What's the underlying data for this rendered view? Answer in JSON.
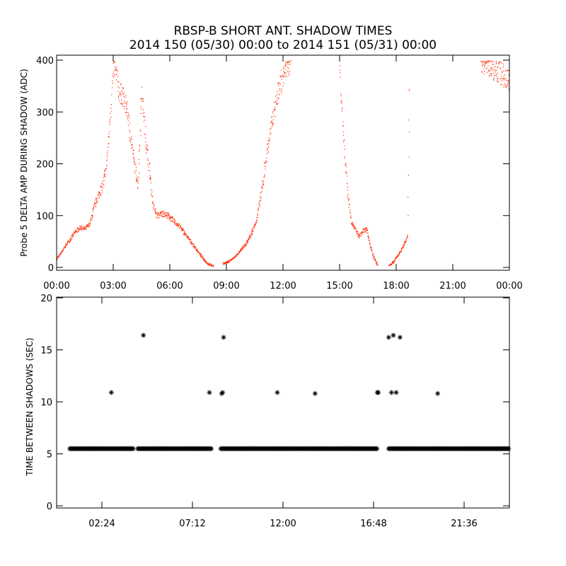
{
  "title": "RBSP-B SHORT ANT. SHADOW TIMES",
  "subtitle": "2014 150 (05/30) 00:00 to 2014 151 (05/31) 00:00",
  "colors": {
    "top_series": "#ff2a00",
    "bottom_series": "#000000",
    "axes": "#000000"
  },
  "chart_data": [
    {
      "type": "scatter",
      "ylabel": "Probe 5 DELTA AMP DURING SHADOW (ADC)",
      "xlabel": "",
      "xlim_hours": [
        0,
        24
      ],
      "ylim": [
        0,
        400
      ],
      "x_tick_labels": [
        "00:00",
        "03:00",
        "06:00",
        "09:00",
        "12:00",
        "15:00",
        "18:00",
        "21:00",
        "00:00"
      ],
      "x_tick_hours": [
        0,
        3,
        6,
        9,
        12,
        15,
        18,
        21,
        24
      ],
      "y_ticks": [
        0,
        100,
        200,
        300,
        400
      ],
      "series": [
        {
          "x_hours": [
            0.0,
            0.25,
            0.5,
            0.75,
            1.0,
            1.25,
            1.5,
            1.75,
            2.0,
            2.2,
            2.4,
            2.6,
            2.75,
            2.9,
            3.0,
            3.15,
            3.3,
            3.5,
            3.75,
            3.95,
            4.1,
            4.3,
            4.5,
            4.7,
            4.9,
            5.1,
            5.3,
            5.6,
            5.9,
            6.2,
            6.5,
            6.8,
            7.1,
            7.4,
            7.7,
            8.0,
            8.3
          ],
          "y": [
            18,
            30,
            45,
            58,
            70,
            78,
            75,
            85,
            120,
            140,
            155,
            190,
            250,
            330,
            390,
            370,
            340,
            330,
            300,
            240,
            200,
            160,
            340,
            250,
            190,
            120,
            100,
            105,
            100,
            90,
            80,
            65,
            50,
            35,
            20,
            8,
            3
          ]
        },
        {
          "x_hours": [
            8.8,
            9.1,
            9.4,
            9.7,
            10.0,
            10.3,
            10.6,
            10.9,
            11.2,
            11.5,
            11.8,
            12.1,
            12.4
          ],
          "y": [
            8,
            12,
            20,
            32,
            45,
            65,
            95,
            160,
            240,
            300,
            350,
            380,
            395
          ]
        },
        {
          "x_hours": [
            15.0,
            15.2,
            15.4,
            15.6,
            15.8,
            16.0,
            16.2,
            16.4,
            16.6,
            16.8,
            17.0
          ],
          "y": [
            380,
            250,
            150,
            90,
            75,
            60,
            70,
            75,
            45,
            20,
            5
          ]
        },
        {
          "x_hours": [
            17.6,
            17.8,
            18.0,
            18.2,
            18.4,
            18.6,
            18.7
          ],
          "y": [
            5,
            10,
            20,
            30,
            45,
            60,
            400
          ]
        },
        {
          "x_hours": [
            22.5,
            22.8,
            23.1,
            23.4,
            23.7,
            24.0
          ],
          "y": [
            400,
            395,
            385,
            380,
            370,
            360
          ]
        }
      ]
    },
    {
      "type": "scatter",
      "ylabel": "TIME BETWEEN SHADOWS (SEC)",
      "xlabel": "",
      "xlim_hours": [
        0,
        24
      ],
      "ylim": [
        0,
        20
      ],
      "x_tick_labels": [
        "02:24",
        "07:12",
        "12:00",
        "16:48",
        "21:36"
      ],
      "x_tick_hours": [
        2.4,
        7.2,
        12.0,
        16.8,
        21.6
      ],
      "y_ticks": [
        0,
        5,
        10,
        15,
        20
      ],
      "baseline": {
        "y": 5.5,
        "segments_hours": [
          [
            0.7,
            4.1
          ],
          [
            4.3,
            8.2
          ],
          [
            8.7,
            17.0
          ],
          [
            17.6,
            24.0
          ]
        ]
      },
      "outliers": {
        "x_hours": [
          2.9,
          4.6,
          8.1,
          8.75,
          8.8,
          8.85,
          11.7,
          13.7,
          17.0,
          17.05,
          17.6,
          17.75,
          17.85,
          18.0,
          18.2,
          20.2
        ],
        "y": [
          10.9,
          16.4,
          10.9,
          10.8,
          10.9,
          16.2,
          10.9,
          10.8,
          10.9,
          10.9,
          16.2,
          10.9,
          16.4,
          10.9,
          16.2,
          10.8
        ]
      }
    }
  ]
}
